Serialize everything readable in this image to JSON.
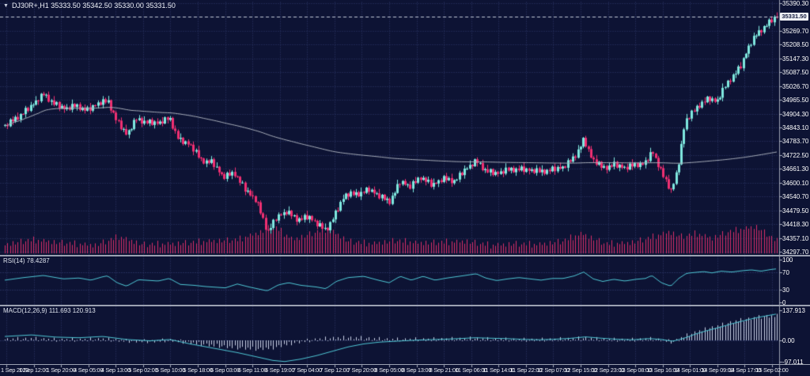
{
  "header": {
    "menu_icon": "▼",
    "title": "DJ30R+,H1 35333.50 35342.50 35330.00 35331.50"
  },
  "colors": {
    "background": "#0d1334",
    "grid": "#2f3a6a",
    "level_line": "#3a477e",
    "bull": "#7FE8DF",
    "bear": "#F02F72",
    "ma": "#A7ADB9",
    "volume": "#DB2E68",
    "indicator_line": "#4FC8D6",
    "histogram": "#C9D1E6",
    "axis_text": "#FFFFFF",
    "separator": "#9BA1B1",
    "price_line": "#C2C8D6",
    "tag_bg": "#EEF0F5",
    "tag_text": "#131A3E"
  },
  "price_axis": {
    "current_price": "35331.50",
    "labels": [
      "35390.30",
      "35269.70",
      "35208.50",
      "35147.30",
      "35087.50",
      "35026.70",
      "34965.50",
      "34904.30",
      "34843.10",
      "34783.70",
      "34722.50",
      "34661.30",
      "34600.10",
      "34540.70",
      "34479.50",
      "34418.30",
      "34357.10",
      "34297.70"
    ]
  },
  "time_axis": {
    "labels": [
      "1 Sep 2023",
      "1 Sep 12:00",
      "1 Sep 20:00",
      "4 Sep 05:00",
      "4 Sep 13:00",
      "5 Sep 02:00",
      "5 Sep 10:00",
      "5 Sep 18:00",
      "6 Sep 03:00",
      "6 Sep 11:00",
      "6 Sep 19:00",
      "7 Sep 04:00",
      "7 Sep 12:00",
      "7 Sep 20:00",
      "8 Sep 05:00",
      "8 Sep 13:00",
      "8 Sep 21:00",
      "11 Sep 06:00",
      "11 Sep 14:00",
      "11 Sep 22:00",
      "12 Sep 07:00",
      "12 Sep 15:00",
      "12 Sep 23:00",
      "13 Sep 08:00",
      "13 Sep 16:00",
      "14 Sep 01:00",
      "14 Sep 09:00",
      "14 Sep 17:00",
      "15 Sep 02:00"
    ]
  },
  "panels": {
    "rsi": {
      "label": "RSI(14)",
      "value": "78.4287",
      "axis_labels": [
        "100",
        "70",
        "30",
        "0"
      ],
      "levels": [
        70,
        30
      ]
    },
    "macd": {
      "label": "MACD(12,26,9)",
      "values": "111.693 120.913",
      "axis_labels": [
        "137.913",
        "0.00",
        "-97.011"
      ]
    }
  },
  "chart_data": [
    {
      "type": "candlestick",
      "title": "DJ30R+,H1",
      "timeframe": "H1",
      "ohlc_summary": {
        "open": 35333.5,
        "high": 35342.5,
        "low": 35330.0,
        "close": 35331.5
      },
      "current_price": 35331.5,
      "ylim": [
        34297.7,
        35390.3
      ],
      "grid": "dotted",
      "ma_period": 30,
      "candle_count": 300,
      "close_path": [
        [
          6,
          34850
        ],
        [
          20,
          34885
        ],
        [
          40,
          34940
        ],
        [
          55,
          34990
        ],
        [
          68,
          34950
        ],
        [
          82,
          34925
        ],
        [
          96,
          34940
        ],
        [
          110,
          34920
        ],
        [
          124,
          34950
        ],
        [
          136,
          34960
        ],
        [
          148,
          34870
        ],
        [
          160,
          34812
        ],
        [
          172,
          34880
        ],
        [
          186,
          34868
        ],
        [
          200,
          34862
        ],
        [
          214,
          34885
        ],
        [
          226,
          34790
        ],
        [
          240,
          34768
        ],
        [
          254,
          34700
        ],
        [
          268,
          34692
        ],
        [
          282,
          34625
        ],
        [
          296,
          34645
        ],
        [
          310,
          34570
        ],
        [
          324,
          34520
        ],
        [
          338,
          34385
        ],
        [
          350,
          34452
        ],
        [
          362,
          34472
        ],
        [
          376,
          34440
        ],
        [
          390,
          34452
        ],
        [
          402,
          34415
        ],
        [
          412,
          34392
        ],
        [
          424,
          34468
        ],
        [
          436,
          34548
        ],
        [
          452,
          34552
        ],
        [
          466,
          34572
        ],
        [
          480,
          34540
        ],
        [
          492,
          34518
        ],
        [
          506,
          34608
        ],
        [
          518,
          34582
        ],
        [
          532,
          34628
        ],
        [
          546,
          34590
        ],
        [
          560,
          34618
        ],
        [
          574,
          34610
        ],
        [
          588,
          34660
        ],
        [
          602,
          34696
        ],
        [
          614,
          34655
        ],
        [
          628,
          34640
        ],
        [
          642,
          34658
        ],
        [
          656,
          34662
        ],
        [
          670,
          34655
        ],
        [
          684,
          34650
        ],
        [
          698,
          34660
        ],
        [
          712,
          34668
        ],
        [
          726,
          34715
        ],
        [
          738,
          34792
        ],
        [
          748,
          34705
        ],
        [
          762,
          34665
        ],
        [
          776,
          34682
        ],
        [
          790,
          34665
        ],
        [
          804,
          34682
        ],
        [
          816,
          34688
        ],
        [
          824,
          34742
        ],
        [
          836,
          34645
        ],
        [
          848,
          34568
        ],
        [
          856,
          34648
        ],
        [
          866,
          34872
        ],
        [
          876,
          34912
        ],
        [
          886,
          34952
        ],
        [
          896,
          34972
        ],
        [
          906,
          34956
        ],
        [
          916,
          35022
        ],
        [
          926,
          35072
        ],
        [
          936,
          35112
        ],
        [
          946,
          35198
        ],
        [
          956,
          35252
        ],
        [
          966,
          35288
        ],
        [
          976,
          35318
        ],
        [
          982,
          35331.5
        ]
      ],
      "volume_path": [
        [
          6,
          10
        ],
        [
          40,
          16
        ],
        [
          80,
          12
        ],
        [
          120,
          9
        ],
        [
          150,
          20
        ],
        [
          180,
          10
        ],
        [
          220,
          11
        ],
        [
          260,
          14
        ],
        [
          300,
          16
        ],
        [
          330,
          26
        ],
        [
          345,
          34
        ],
        [
          370,
          16
        ],
        [
          400,
          26
        ],
        [
          415,
          30
        ],
        [
          440,
          14
        ],
        [
          470,
          11
        ],
        [
          500,
          15
        ],
        [
          530,
          12
        ],
        [
          560,
          13
        ],
        [
          590,
          14
        ],
        [
          620,
          9
        ],
        [
          650,
          11
        ],
        [
          680,
          10
        ],
        [
          710,
          14
        ],
        [
          735,
          24
        ],
        [
          765,
          11
        ],
        [
          795,
          12
        ],
        [
          820,
          18
        ],
        [
          845,
          26
        ],
        [
          862,
          20
        ],
        [
          880,
          24
        ],
        [
          900,
          18
        ],
        [
          920,
          26
        ],
        [
          940,
          30
        ],
        [
          955,
          33
        ],
        [
          968,
          24
        ],
        [
          982,
          14
        ]
      ],
      "zigzag": [
        0.4,
        -0.7,
        1.0,
        -0.3,
        0.6,
        -1.0,
        0.2,
        -0.5,
        0.9,
        -0.8,
        0.5,
        -0.2
      ],
      "zigzag_amp": 13,
      "wick_upper": [
        1,
        2.5,
        1.5,
        4,
        2,
        5.5,
        1
      ],
      "wick_lower": [
        1.5,
        3.5,
        1,
        4.5,
        2
      ],
      "vol_jitter": [
        0,
        4,
        -3,
        6,
        -2,
        2,
        8,
        -4,
        1,
        5,
        -1,
        9,
        -5,
        3,
        0,
        6
      ]
    },
    {
      "type": "line",
      "name": "RSI(14)",
      "value": 78.4287,
      "ylim": [
        0,
        100
      ],
      "levels": [
        70,
        30
      ],
      "points": [
        [
          6,
          52
        ],
        [
          30,
          58
        ],
        [
          55,
          63
        ],
        [
          80,
          55
        ],
        [
          100,
          57
        ],
        [
          115,
          52
        ],
        [
          130,
          60
        ],
        [
          136,
          62
        ],
        [
          148,
          46
        ],
        [
          160,
          38
        ],
        [
          175,
          53
        ],
        [
          200,
          50
        ],
        [
          214,
          56
        ],
        [
          228,
          42
        ],
        [
          245,
          40
        ],
        [
          260,
          37
        ],
        [
          285,
          34
        ],
        [
          300,
          43
        ],
        [
          315,
          36
        ],
        [
          338,
          27
        ],
        [
          352,
          41
        ],
        [
          365,
          46
        ],
        [
          380,
          40
        ],
        [
          400,
          36
        ],
        [
          412,
          32
        ],
        [
          425,
          49
        ],
        [
          440,
          58
        ],
        [
          460,
          61
        ],
        [
          478,
          52
        ],
        [
          492,
          46
        ],
        [
          506,
          61
        ],
        [
          520,
          52
        ],
        [
          535,
          61
        ],
        [
          550,
          52
        ],
        [
          565,
          57
        ],
        [
          588,
          63
        ],
        [
          602,
          67
        ],
        [
          614,
          57
        ],
        [
          628,
          51
        ],
        [
          642,
          55
        ],
        [
          656,
          58
        ],
        [
          670,
          55
        ],
        [
          684,
          52
        ],
        [
          698,
          56
        ],
        [
          712,
          56
        ],
        [
          726,
          62
        ],
        [
          738,
          71
        ],
        [
          750,
          55
        ],
        [
          762,
          49
        ],
        [
          776,
          54
        ],
        [
          790,
          50
        ],
        [
          804,
          54
        ],
        [
          816,
          56
        ],
        [
          824,
          63
        ],
        [
          836,
          46
        ],
        [
          848,
          38
        ],
        [
          858,
          56
        ],
        [
          868,
          68
        ],
        [
          878,
          70
        ],
        [
          890,
          72
        ],
        [
          900,
          69
        ],
        [
          912,
          73
        ],
        [
          925,
          71
        ],
        [
          938,
          74
        ],
        [
          950,
          76
        ],
        [
          962,
          73
        ],
        [
          975,
          77
        ],
        [
          982,
          78.43
        ]
      ]
    },
    {
      "type": "macd",
      "name": "MACD(12,26,9)",
      "macd_value": 111.693,
      "signal_value": 120.913,
      "axis_values": [
        137.913,
        0,
        -97.011
      ],
      "signal_line": [
        [
          6,
          18
        ],
        [
          40,
          25
        ],
        [
          70,
          15
        ],
        [
          100,
          12
        ],
        [
          130,
          18
        ],
        [
          160,
          4
        ],
        [
          190,
          -2
        ],
        [
          215,
          4
        ],
        [
          240,
          -16
        ],
        [
          270,
          -36
        ],
        [
          300,
          -56
        ],
        [
          325,
          -76
        ],
        [
          345,
          -92
        ],
        [
          360,
          -97
        ],
        [
          380,
          -86
        ],
        [
          400,
          -70
        ],
        [
          420,
          -50
        ],
        [
          440,
          -30
        ],
        [
          460,
          -16
        ],
        [
          480,
          -8
        ],
        [
          500,
          -4
        ],
        [
          520,
          0
        ],
        [
          540,
          3
        ],
        [
          560,
          5
        ],
        [
          580,
          8
        ],
        [
          600,
          12
        ],
        [
          620,
          10
        ],
        [
          640,
          8
        ],
        [
          660,
          5
        ],
        [
          680,
          3
        ],
        [
          700,
          5
        ],
        [
          720,
          9
        ],
        [
          740,
          16
        ],
        [
          760,
          10
        ],
        [
          780,
          5
        ],
        [
          800,
          3
        ],
        [
          820,
          8
        ],
        [
          835,
          5
        ],
        [
          850,
          -4
        ],
        [
          865,
          10
        ],
        [
          880,
          30
        ],
        [
          895,
          46
        ],
        [
          910,
          60
        ],
        [
          925,
          76
        ],
        [
          940,
          90
        ],
        [
          955,
          103
        ],
        [
          968,
          112
        ],
        [
          982,
          120.9
        ]
      ],
      "histogram": [
        [
          6,
          4
        ],
        [
          40,
          7
        ],
        [
          70,
          2
        ],
        [
          100,
          2
        ],
        [
          130,
          5
        ],
        [
          160,
          -3
        ],
        [
          190,
          -5
        ],
        [
          215,
          1
        ],
        [
          240,
          -12
        ],
        [
          270,
          -24
        ],
        [
          300,
          -34
        ],
        [
          325,
          -40
        ],
        [
          345,
          -34
        ],
        [
          360,
          -20
        ],
        [
          380,
          -6
        ],
        [
          400,
          4
        ],
        [
          420,
          10
        ],
        [
          440,
          12
        ],
        [
          460,
          10
        ],
        [
          480,
          5
        ],
        [
          500,
          3
        ],
        [
          520,
          4
        ],
        [
          540,
          4
        ],
        [
          560,
          5
        ],
        [
          580,
          6
        ],
        [
          600,
          8
        ],
        [
          620,
          4
        ],
        [
          640,
          3
        ],
        [
          660,
          2
        ],
        [
          680,
          2
        ],
        [
          700,
          4
        ],
        [
          720,
          6
        ],
        [
          740,
          10
        ],
        [
          760,
          3
        ],
        [
          780,
          2
        ],
        [
          800,
          2
        ],
        [
          820,
          6
        ],
        [
          835,
          2
        ],
        [
          850,
          -8
        ],
        [
          865,
          18
        ],
        [
          880,
          38
        ],
        [
          895,
          54
        ],
        [
          910,
          68
        ],
        [
          925,
          84
        ],
        [
          940,
          95
        ],
        [
          955,
          104
        ],
        [
          968,
          110
        ],
        [
          982,
          111.7
        ]
      ],
      "hist_jitter": [
        0,
        3,
        -3,
        2,
        -2,
        5,
        -4
      ]
    }
  ]
}
